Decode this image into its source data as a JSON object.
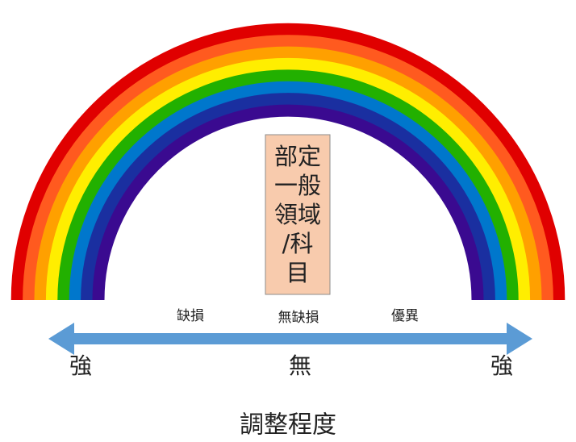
{
  "box": {
    "lines": [
      "部定",
      "一般",
      "領域",
      "/科",
      "目"
    ]
  },
  "arrow_labels": {
    "left": "缺損",
    "middle": "無缺損",
    "right": "優異"
  },
  "scale": {
    "left": "強",
    "middle": "無",
    "right": "強"
  },
  "axis_title": "調整程度"
}
